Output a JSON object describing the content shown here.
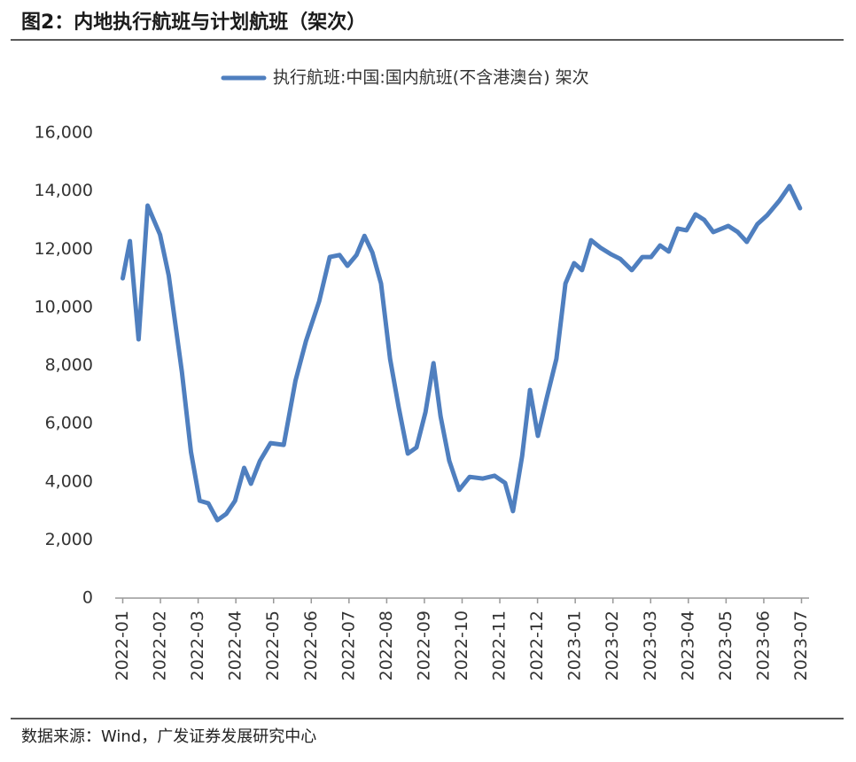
{
  "chart_data": {
    "type": "line",
    "title": "图2：内地执行航班与计划航班（架次）",
    "source": "数据来源：Wind，广发证券发展研究中心",
    "series": [
      {
        "name": "执行航班:中国:国内航班(不含港澳台) 架次",
        "color": "#4f7fbf",
        "x": [
          0,
          0.19,
          0.42,
          0.66,
          0.99,
          1.22,
          1.57,
          1.81,
          2.04,
          2.27,
          2.51,
          2.75,
          2.98,
          3.22,
          3.4,
          3.64,
          3.92,
          4.27,
          4.58,
          4.86,
          5.21,
          5.49,
          5.75,
          5.96,
          6.2,
          6.41,
          6.62,
          6.85,
          7.09,
          7.32,
          7.56,
          7.79,
          8.03,
          8.24,
          8.43,
          8.66,
          8.92,
          9.2,
          9.55,
          9.86,
          10.14,
          10.35,
          10.59,
          10.8,
          11.01,
          11.24,
          11.5,
          11.74,
          11.97,
          12.18,
          12.42,
          12.68,
          12.96,
          13.19,
          13.5,
          13.78,
          14.01,
          14.25,
          14.48,
          14.72,
          14.95,
          15.19,
          15.42,
          15.66,
          16.06,
          16.31,
          16.55,
          16.83,
          17.09,
          17.42,
          17.68,
          17.96
        ],
        "values": [
          11000,
          12280,
          8900,
          13500,
          12500,
          11100,
          7770,
          5030,
          3350,
          3260,
          2680,
          2900,
          3350,
          4480,
          3930,
          4720,
          5330,
          5270,
          7470,
          8840,
          10210,
          11730,
          11800,
          11430,
          11800,
          12460,
          11890,
          10820,
          8230,
          6550,
          4970,
          5180,
          6400,
          8080,
          6250,
          4720,
          3720,
          4170,
          4110,
          4210,
          3960,
          2990,
          4880,
          7160,
          5580,
          6860,
          8230,
          10820,
          11520,
          11280,
          12310,
          12040,
          11820,
          11670,
          11280,
          11730,
          11730,
          12130,
          11920,
          12710,
          12650,
          13200,
          13010,
          12590,
          12800,
          12590,
          12250,
          12860,
          13170,
          13680,
          14170,
          13410
        ]
      }
    ],
    "xlim": [
      -0.2,
      18.2
    ],
    "xticks": [
      {
        "value": 0,
        "label": "2022-01"
      },
      {
        "value": 1,
        "label": "2022-02"
      },
      {
        "value": 2,
        "label": "2022-03"
      },
      {
        "value": 3,
        "label": "2022-04"
      },
      {
        "value": 4,
        "label": "2022-05"
      },
      {
        "value": 5,
        "label": "2022-06"
      },
      {
        "value": 6,
        "label": "2022-07"
      },
      {
        "value": 7,
        "label": "2022-08"
      },
      {
        "value": 8,
        "label": "2022-09"
      },
      {
        "value": 9,
        "label": "2022-10"
      },
      {
        "value": 10,
        "label": "2022-11"
      },
      {
        "value": 11,
        "label": "2022-12"
      },
      {
        "value": 12,
        "label": "2023-01"
      },
      {
        "value": 13,
        "label": "2023-02"
      },
      {
        "value": 14,
        "label": "2023-03"
      },
      {
        "value": 15,
        "label": "2023-04"
      },
      {
        "value": 16,
        "label": "2023-05"
      },
      {
        "value": 17,
        "label": "2023-06"
      },
      {
        "value": 18,
        "label": "2023-07"
      }
    ],
    "ylim": [
      0,
      16000
    ],
    "yticks": [
      0,
      {
        "value": 2000,
        "label": "2,000"
      },
      {
        "value": 4000,
        "label": "4,000"
      },
      {
        "value": 6000,
        "label": "6,000"
      },
      {
        "value": 8000,
        "label": "8,000"
      },
      {
        "value": 10000,
        "label": "10,000"
      },
      {
        "value": 12000,
        "label": "12,000"
      },
      {
        "value": 14000,
        "label": "14,000"
      },
      {
        "value": 16000,
        "label": "16,000"
      }
    ],
    "grid": false
  }
}
